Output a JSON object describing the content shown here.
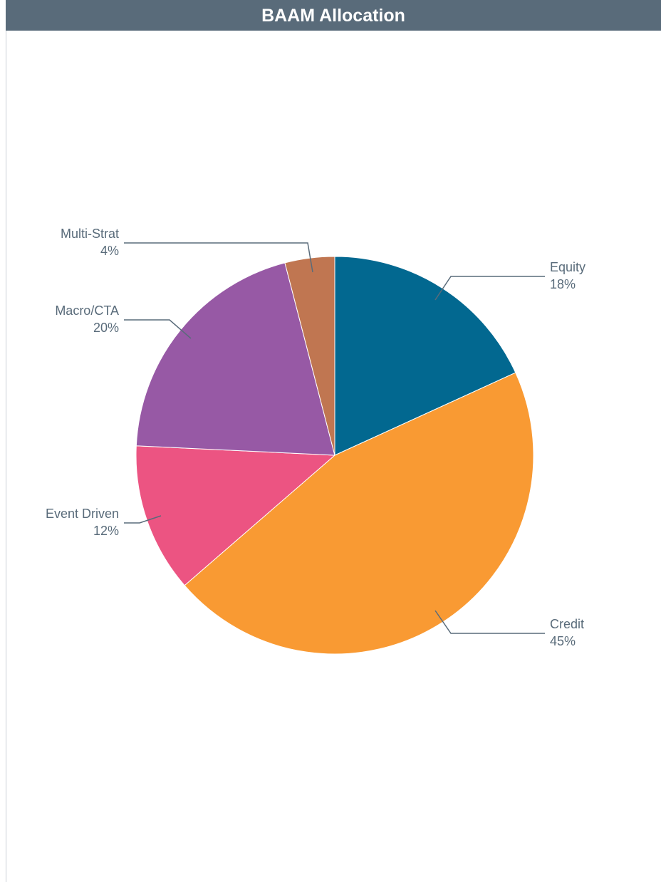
{
  "chart_data": {
    "type": "pie",
    "title": "BAAM Allocation",
    "slices": [
      {
        "name": "Equity",
        "value": 18,
        "label": "18%",
        "color": "#026890"
      },
      {
        "name": "Credit",
        "value": 45,
        "label": "45%",
        "color": "#f99a33"
      },
      {
        "name": "Event Driven",
        "value": 12,
        "label": "12%",
        "color": "#ec5482"
      },
      {
        "name": "Macro/CTA",
        "value": 20,
        "label": "20%",
        "color": "#9759a5"
      },
      {
        "name": "Multi-Strat",
        "value": 4,
        "label": "4%",
        "color": "#c07651"
      }
    ],
    "label_color": "#596b7a",
    "header_color": "#596b7a"
  }
}
